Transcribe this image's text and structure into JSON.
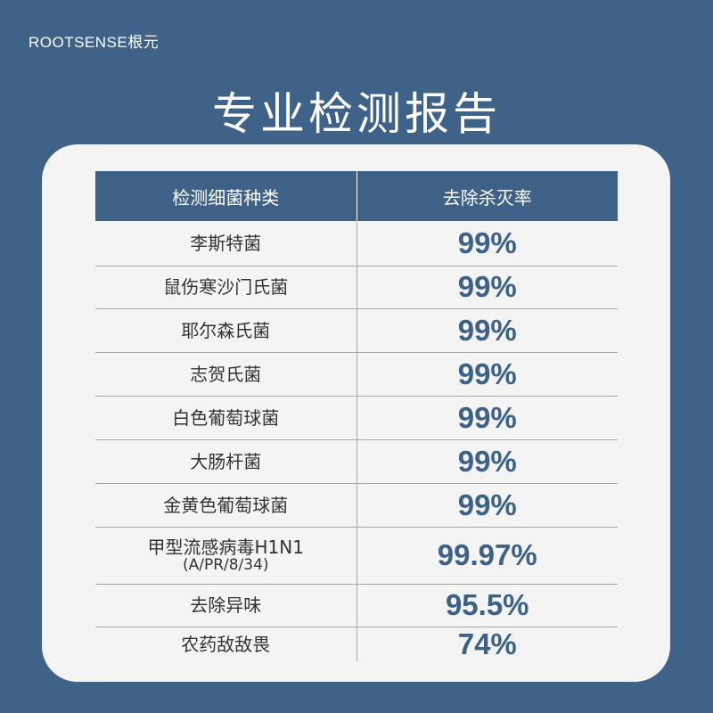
{
  "brand": "ROOTSENSE根元",
  "title": "专业检测报告",
  "table": {
    "headers": [
      "检测细菌种类",
      "去除杀灭率"
    ],
    "rows": [
      {
        "name": "李斯特菌",
        "sub": "",
        "rate": "99%"
      },
      {
        "name": "鼠伤寒沙门氏菌",
        "sub": "",
        "rate": "99%"
      },
      {
        "name": "耶尔森氏菌",
        "sub": "",
        "rate": "99%"
      },
      {
        "name": "志贺氏菌",
        "sub": "",
        "rate": "99%"
      },
      {
        "name": "白色葡萄球菌",
        "sub": "",
        "rate": "99%"
      },
      {
        "name": "大肠杆菌",
        "sub": "",
        "rate": "99%"
      },
      {
        "name": "金黄色葡萄球菌",
        "sub": "",
        "rate": "99%"
      },
      {
        "name": "甲型流感病毒H1N1",
        "sub": "(A/PR/8/34)",
        "rate": "99.97%"
      },
      {
        "name": "去除异味",
        "sub": "",
        "rate": "95.5%"
      },
      {
        "name": "农药敌敌畏",
        "sub": "",
        "rate": "74%"
      }
    ]
  },
  "colors": {
    "background": "#3f6388",
    "accent": "#3e6187",
    "card": "#f4f4f4"
  }
}
